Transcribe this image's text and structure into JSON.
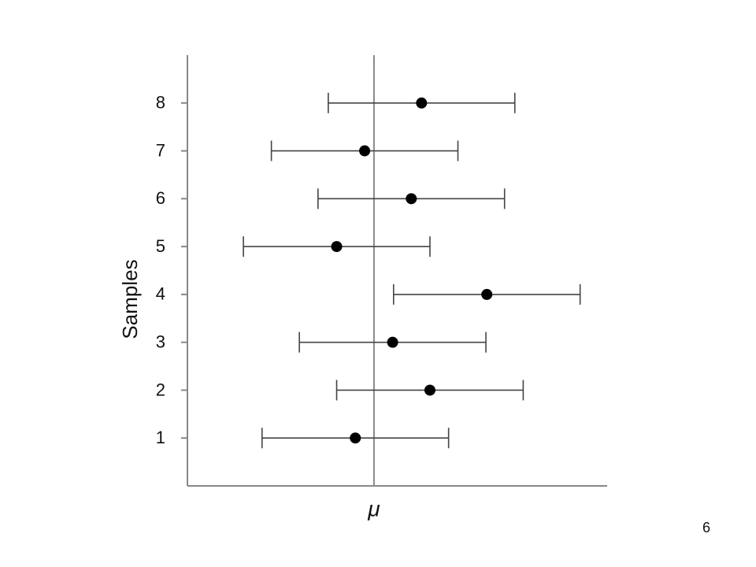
{
  "chart_data": {
    "type": "errorbar",
    "ylabel": "Samples",
    "y": [
      1,
      2,
      3,
      4,
      5,
      6,
      7,
      8
    ],
    "x": [
      -2.0,
      6.0,
      2.0,
      12.1,
      -4.0,
      4.0,
      -1.0,
      5.1
    ],
    "errors": [
      10,
      10,
      10,
      10,
      10,
      10,
      10,
      10
    ],
    "color": "#000000",
    "xlim": [
      -20,
      25
    ],
    "xticks": [
      {
        "value": 0,
        "label": "μ"
      }
    ],
    "ylim": [
      0,
      9
    ],
    "yticks": [
      1,
      2,
      3,
      4,
      5,
      6,
      7,
      8
    ]
  },
  "slide_number": "6"
}
